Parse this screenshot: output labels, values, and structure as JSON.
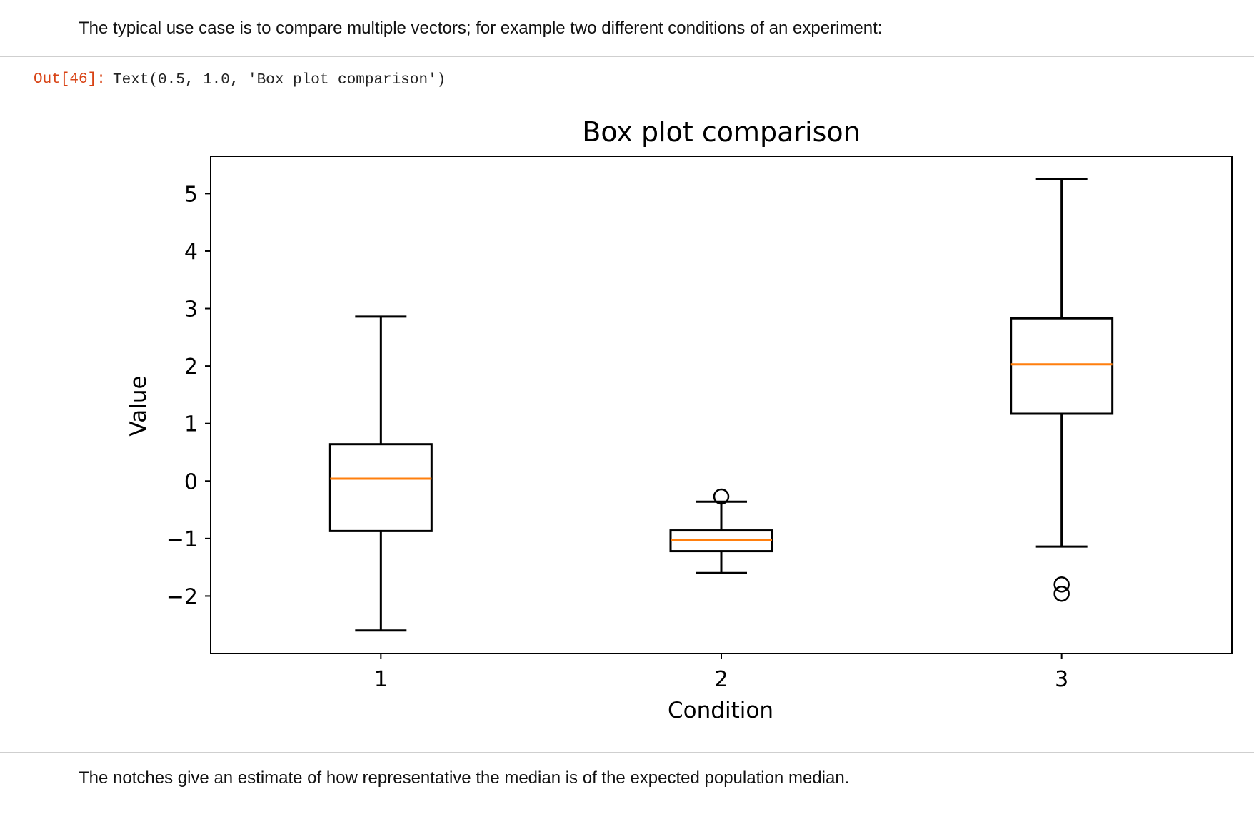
{
  "notebook": {
    "intro_text": "The typical use case is to compare multiple vectors; for example two different conditions of an experiment:",
    "output_prompt": "Out[46]:",
    "output_text": "Text(0.5, 1.0, 'Box plot comparison')",
    "notches_text": "The notches give an estimate of how representative the median is of the expected population median."
  },
  "chart_data": {
    "type": "box",
    "title": "Box plot comparison",
    "xlabel": "Condition",
    "ylabel": "Value",
    "categories": [
      "1",
      "2",
      "3"
    ],
    "ylim": [
      -3.0,
      5.65
    ],
    "yticks": [
      -2,
      -1,
      0,
      1,
      2,
      3,
      4,
      5
    ],
    "ytick_labels": [
      "−2",
      "−1",
      "0",
      "1",
      "2",
      "3",
      "4",
      "5"
    ],
    "grid": false,
    "boxes": [
      {
        "name": "1",
        "whisker_low": -2.6,
        "q1": -0.87,
        "median": 0.04,
        "q3": 0.64,
        "whisker_high": 2.86,
        "outliers": []
      },
      {
        "name": "2",
        "whisker_low": -1.6,
        "q1": -1.22,
        "median": -1.03,
        "q3": -0.86,
        "whisker_high": -0.36,
        "outliers": [
          -0.27
        ]
      },
      {
        "name": "3",
        "whisker_low": -1.14,
        "q1": 1.17,
        "median": 2.03,
        "q3": 2.83,
        "whisker_high": 5.25,
        "outliers": [
          -1.8,
          -1.96
        ]
      }
    ],
    "colors": {
      "box": "#000000",
      "median": "#ff7f0e"
    }
  }
}
